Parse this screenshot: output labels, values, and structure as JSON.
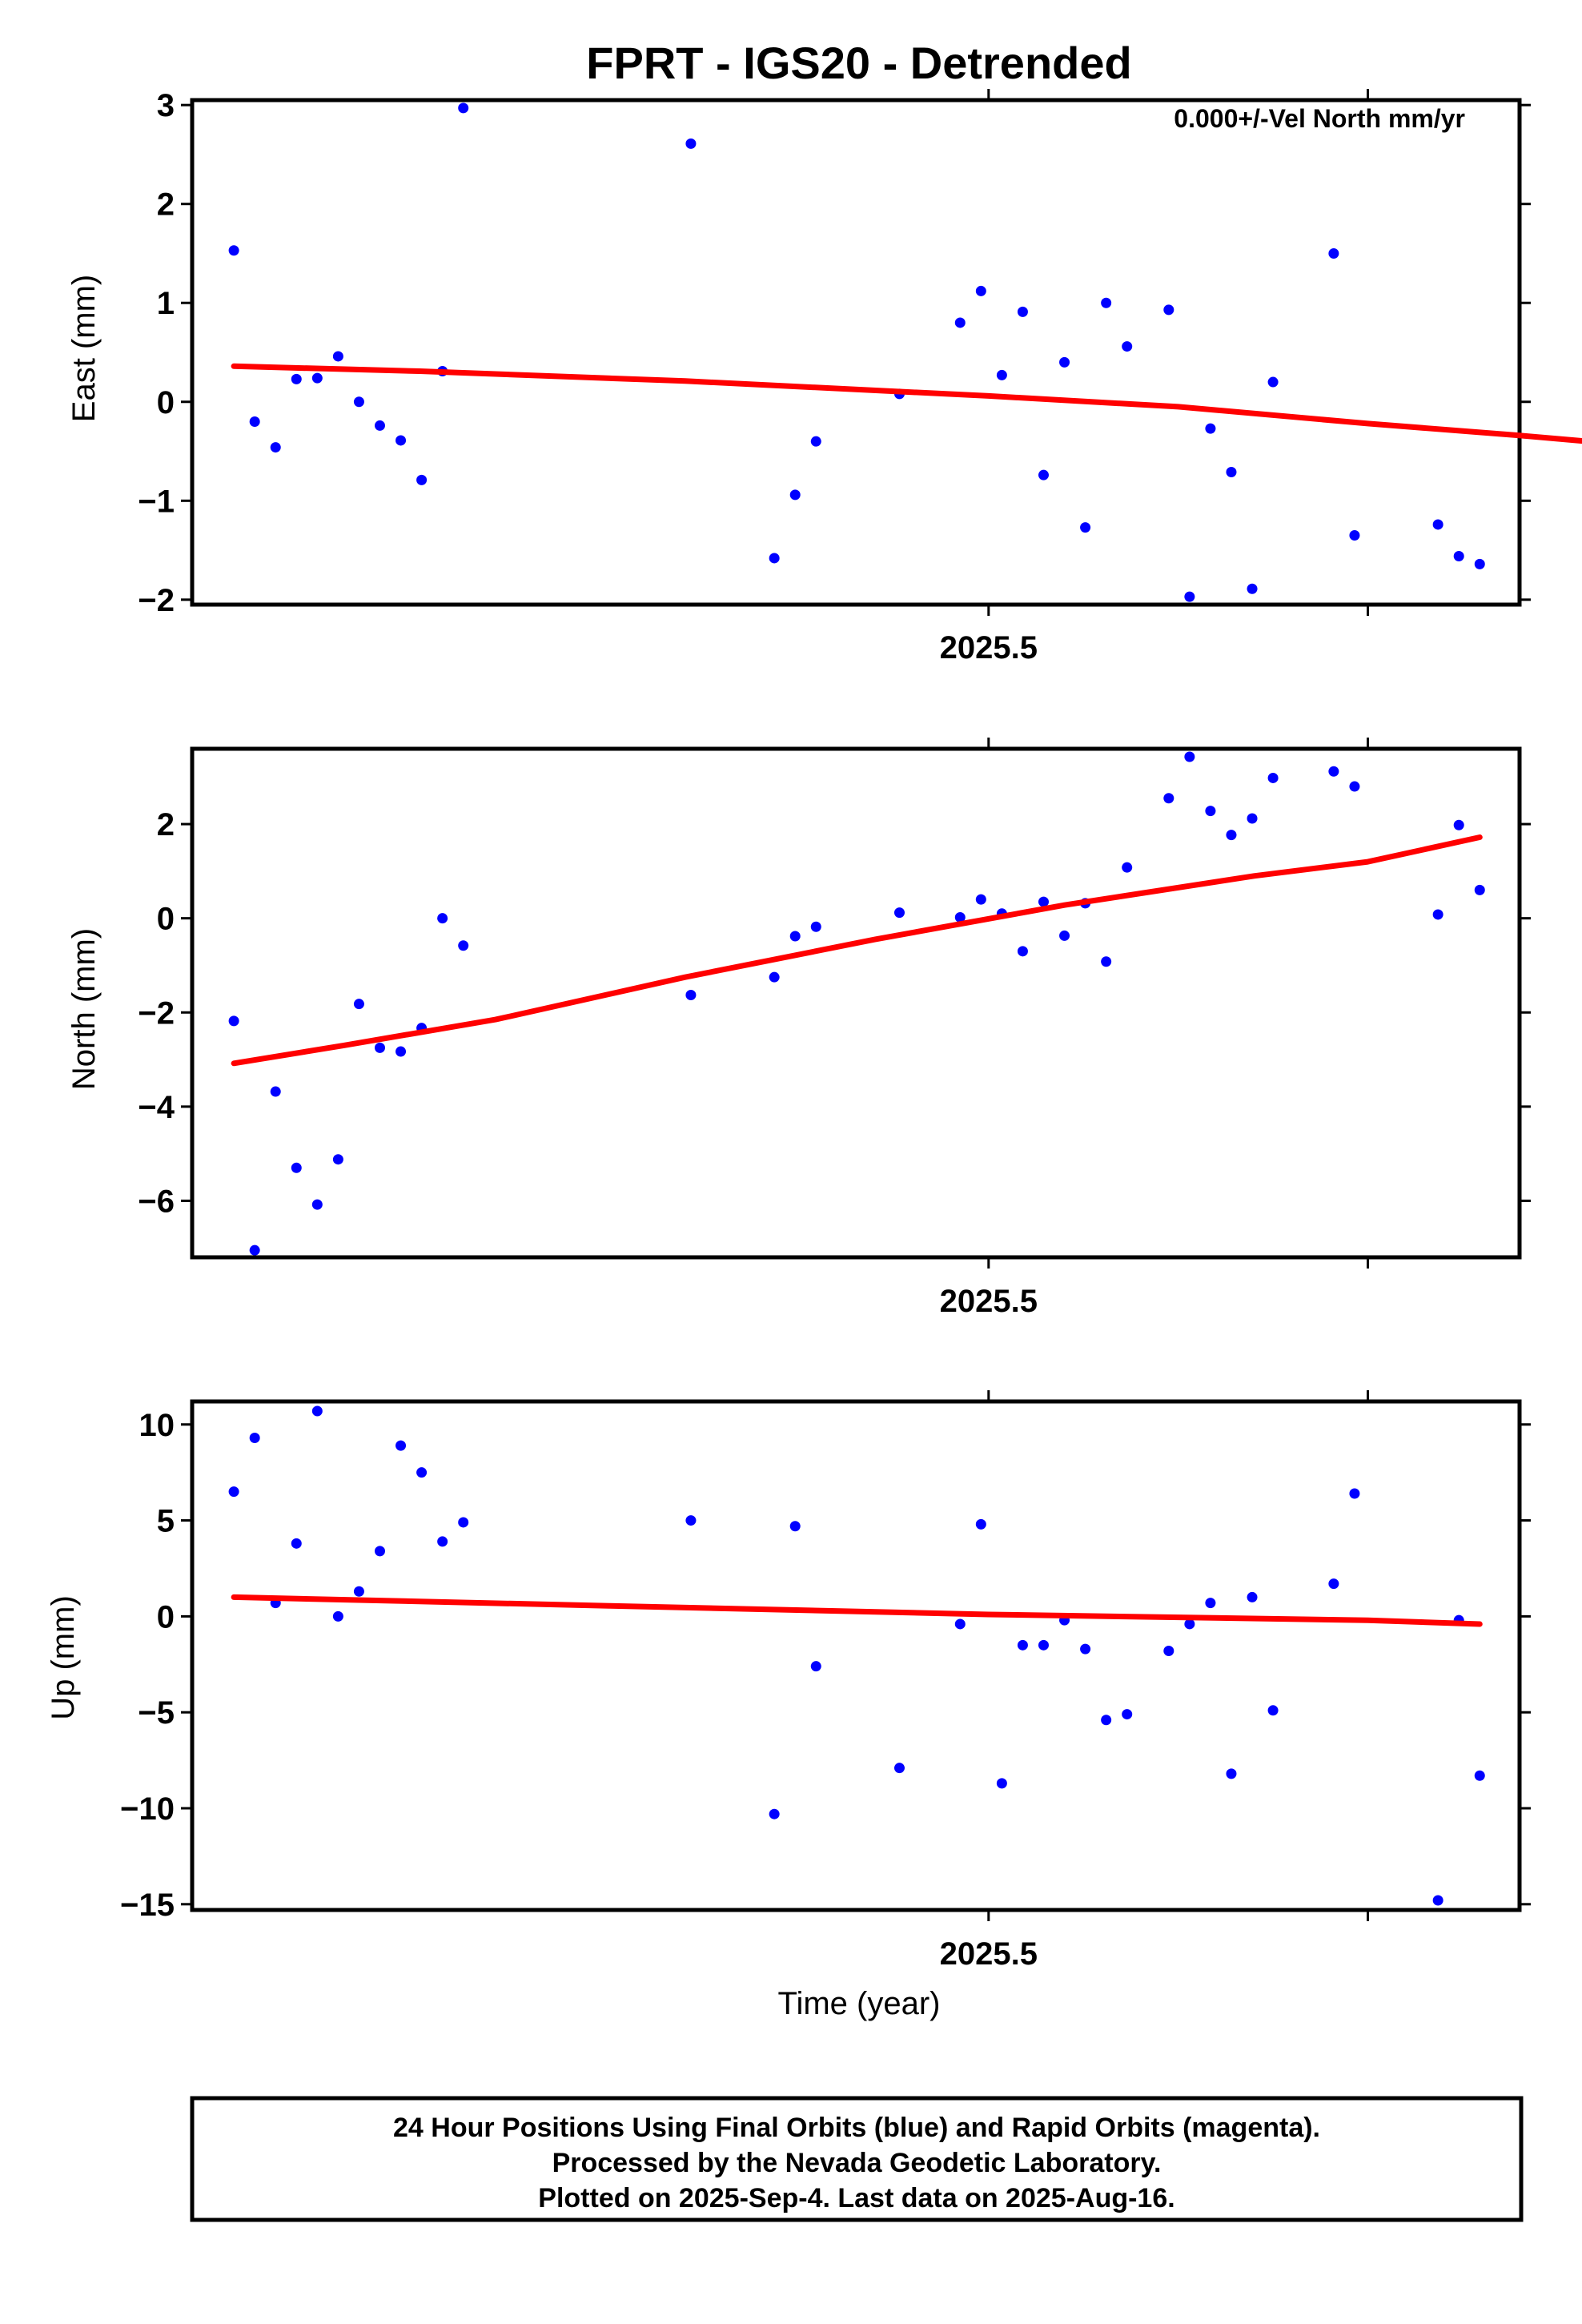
{
  "chart_data": {
    "title": "FPRT - IGS20 - Detrended",
    "type": "scatter",
    "xlabel": "Time (year)",
    "xlim": [
      2025.29,
      2025.64
    ],
    "x_major_ticks": [
      2025.5
    ],
    "x_major_tick_labels": [
      "2025.5"
    ],
    "x_minor_ticks": [
      2025.5,
      2025.6
    ],
    "colors": {
      "points": "#0000ff",
      "fit": "#ff0000",
      "frame": "#000000"
    },
    "panels": [
      {
        "name": "east",
        "ylabel": "East (mm)",
        "ylim": [
          -2.05,
          3.05
        ],
        "yticks": [
          -2,
          -1,
          0,
          1,
          2,
          3
        ],
        "ytick_labels": [
          "−2",
          "−1",
          "0",
          "1",
          "2",
          "3"
        ],
        "annotation": "0.000+/-Vel North mm/yr",
        "trend": [
          [
            2025.301,
            0.36
          ],
          [
            2025.35,
            0.31
          ],
          [
            2025.42,
            0.21
          ],
          [
            2025.5,
            0.06
          ],
          [
            2025.55,
            -0.05
          ],
          [
            2025.6,
            -0.22
          ],
          [
            2025.64,
            -0.34
          ],
          [
            2025.697,
            -0.53
          ]
        ],
        "points": [
          [
            2025.301,
            1.53
          ],
          [
            2025.3065,
            -0.2
          ],
          [
            2025.312,
            -0.46
          ],
          [
            2025.3175,
            0.23
          ],
          [
            2025.323,
            0.24
          ],
          [
            2025.3285,
            0.46
          ],
          [
            2025.334,
            0.0
          ],
          [
            2025.3395,
            -0.24
          ],
          [
            2025.345,
            -0.39
          ],
          [
            2025.3505,
            -0.79
          ],
          [
            2025.356,
            0.31
          ],
          [
            2025.3615,
            2.97
          ],
          [
            2025.4215,
            2.61
          ],
          [
            2025.4435,
            -1.58
          ],
          [
            2025.449,
            -0.94
          ],
          [
            2025.4545,
            -0.4
          ],
          [
            2025.4765,
            0.08
          ],
          [
            2025.4925,
            0.8
          ],
          [
            2025.498,
            1.12
          ],
          [
            2025.5035,
            0.27
          ],
          [
            2025.509,
            0.91
          ],
          [
            2025.5145,
            -0.74
          ],
          [
            2025.52,
            0.4
          ],
          [
            2025.5255,
            -1.27
          ],
          [
            2025.531,
            1.0
          ],
          [
            2025.5365,
            0.56
          ],
          [
            2025.5475,
            0.93
          ],
          [
            2025.553,
            -1.97
          ],
          [
            2025.5585,
            -0.27
          ],
          [
            2025.564,
            -0.71
          ],
          [
            2025.5695,
            -1.89
          ],
          [
            2025.575,
            0.2
          ],
          [
            2025.591,
            1.5
          ],
          [
            2025.5965,
            -1.35
          ],
          [
            2025.6185,
            -1.24
          ],
          [
            2025.624,
            -1.56
          ],
          [
            2025.6295,
            -1.64
          ]
        ]
      },
      {
        "name": "north",
        "ylabel": "North (mm)",
        "ylim": [
          -7.2,
          3.6
        ],
        "yticks": [
          -6,
          -4,
          -2,
          0,
          2
        ],
        "ytick_labels": [
          "−6",
          "−4",
          "−2",
          "0",
          "2"
        ],
        "trend": [
          [
            2025.301,
            -3.08
          ],
          [
            2025.33,
            -2.7
          ],
          [
            2025.37,
            -2.15
          ],
          [
            2025.42,
            -1.25
          ],
          [
            2025.47,
            -0.45
          ],
          [
            2025.52,
            0.28
          ],
          [
            2025.57,
            0.9
          ],
          [
            2025.6,
            1.2
          ],
          [
            2025.6295,
            1.72
          ]
        ],
        "points": [
          [
            2025.301,
            -2.18
          ],
          [
            2025.3065,
            -7.05
          ],
          [
            2025.312,
            -3.68
          ],
          [
            2025.3175,
            -5.3
          ],
          [
            2025.323,
            -6.08
          ],
          [
            2025.3285,
            -5.12
          ],
          [
            2025.334,
            -1.82
          ],
          [
            2025.3395,
            -2.75
          ],
          [
            2025.345,
            -2.83
          ],
          [
            2025.3505,
            -2.33
          ],
          [
            2025.356,
            0.0
          ],
          [
            2025.3615,
            -0.58
          ],
          [
            2025.4215,
            -1.63
          ],
          [
            2025.4435,
            -1.25
          ],
          [
            2025.449,
            -0.38
          ],
          [
            2025.4545,
            -0.18
          ],
          [
            2025.4765,
            0.12
          ],
          [
            2025.4925,
            0.02
          ],
          [
            2025.498,
            0.4
          ],
          [
            2025.5035,
            0.1
          ],
          [
            2025.509,
            -0.7
          ],
          [
            2025.5145,
            0.35
          ],
          [
            2025.52,
            -0.37
          ],
          [
            2025.5255,
            0.32
          ],
          [
            2025.531,
            -0.92
          ],
          [
            2025.5365,
            1.08
          ],
          [
            2025.5475,
            2.55
          ],
          [
            2025.553,
            3.43
          ],
          [
            2025.5585,
            2.28
          ],
          [
            2025.564,
            1.77
          ],
          [
            2025.5695,
            2.12
          ],
          [
            2025.575,
            2.98
          ],
          [
            2025.591,
            3.12
          ],
          [
            2025.5965,
            2.8
          ],
          [
            2025.6185,
            0.08
          ],
          [
            2025.624,
            1.98
          ],
          [
            2025.6295,
            0.6
          ]
        ]
      },
      {
        "name": "up",
        "ylabel": "Up (mm)",
        "ylim": [
          -15.3,
          11.2
        ],
        "yticks": [
          -15,
          -10,
          -5,
          0,
          5,
          10
        ],
        "ytick_labels": [
          "−15",
          "−10",
          "−5",
          "0",
          "5",
          "10"
        ],
        "trend": [
          [
            2025.301,
            1.0
          ],
          [
            2025.4,
            0.55
          ],
          [
            2025.5,
            0.1
          ],
          [
            2025.6,
            -0.2
          ],
          [
            2025.6295,
            -0.4
          ]
        ],
        "points": [
          [
            2025.301,
            6.5
          ],
          [
            2025.3065,
            9.3
          ],
          [
            2025.312,
            0.7
          ],
          [
            2025.3175,
            3.8
          ],
          [
            2025.323,
            10.7
          ],
          [
            2025.3285,
            0.0
          ],
          [
            2025.334,
            1.3
          ],
          [
            2025.3395,
            3.4
          ],
          [
            2025.345,
            8.9
          ],
          [
            2025.3505,
            7.5
          ],
          [
            2025.356,
            3.9
          ],
          [
            2025.3615,
            4.9
          ],
          [
            2025.4215,
            5.0
          ],
          [
            2025.4435,
            -10.3
          ],
          [
            2025.449,
            4.7
          ],
          [
            2025.4545,
            -2.6
          ],
          [
            2025.4765,
            -7.9
          ],
          [
            2025.4925,
            -0.4
          ],
          [
            2025.498,
            4.8
          ],
          [
            2025.5035,
            -8.7
          ],
          [
            2025.509,
            -1.5
          ],
          [
            2025.5145,
            -1.5
          ],
          [
            2025.52,
            -0.2
          ],
          [
            2025.5255,
            -1.7
          ],
          [
            2025.531,
            -5.4
          ],
          [
            2025.5365,
            -5.1
          ],
          [
            2025.5475,
            -1.8
          ],
          [
            2025.553,
            -0.4
          ],
          [
            2025.5585,
            0.7
          ],
          [
            2025.564,
            -8.2
          ],
          [
            2025.5695,
            1.0
          ],
          [
            2025.575,
            -4.9
          ],
          [
            2025.591,
            1.7
          ],
          [
            2025.5965,
            6.4
          ],
          [
            2025.6185,
            -14.8
          ],
          [
            2025.624,
            -0.2
          ],
          [
            2025.6295,
            -8.3
          ]
        ]
      }
    ]
  },
  "footer": {
    "line1": "24 Hour Positions Using Final Orbits (blue) and Rapid Orbits (magenta).",
    "line2": "Processed by the Nevada Geodetic Laboratory.",
    "line3": "Plotted on 2025-Sep-4. Last data on 2025-Aug-16."
  }
}
